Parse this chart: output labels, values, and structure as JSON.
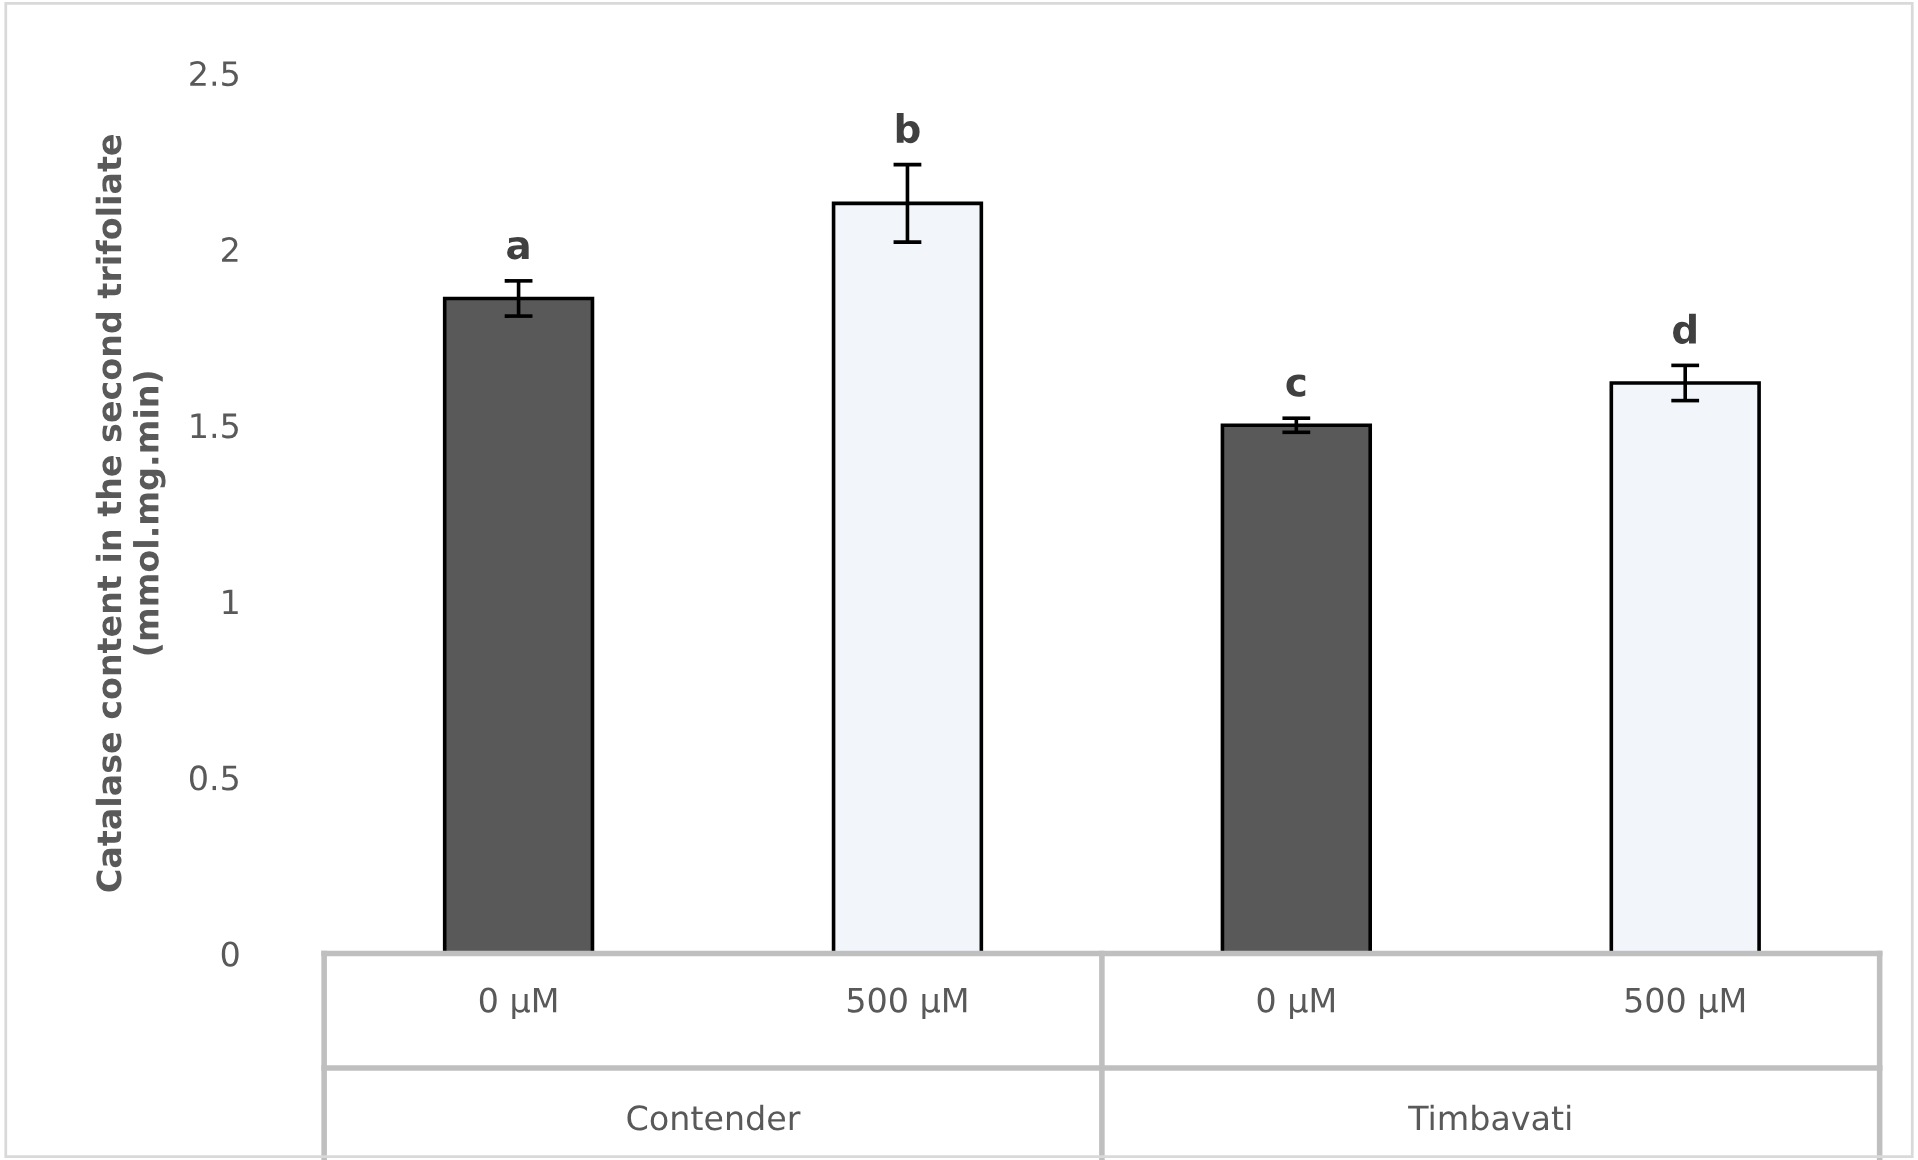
{
  "chart_data": {
    "type": "bar",
    "ylabel": "Catalase content in the second trifoliate\n(mmol.mg.min)",
    "categories": [
      "0 µM",
      "500 µM",
      "0 µM",
      "500 µM"
    ],
    "annotations": [
      "Contender",
      "Timbavati"
    ],
    "values": [
      1.86,
      2.13,
      1.5,
      1.62
    ],
    "errors": [
      0.05,
      0.11,
      0.02,
      0.05
    ],
    "value_labels": [
      "a",
      "b",
      "c",
      "d"
    ],
    "colors": [
      "#595959",
      "#f2f6fb",
      "#595959",
      "#f2f6fb"
    ],
    "ylim": [
      0,
      2.5
    ],
    "yticks": [
      0,
      0.5,
      1,
      1.5,
      2,
      2.5
    ],
    "grid": false,
    "legend": false
  }
}
